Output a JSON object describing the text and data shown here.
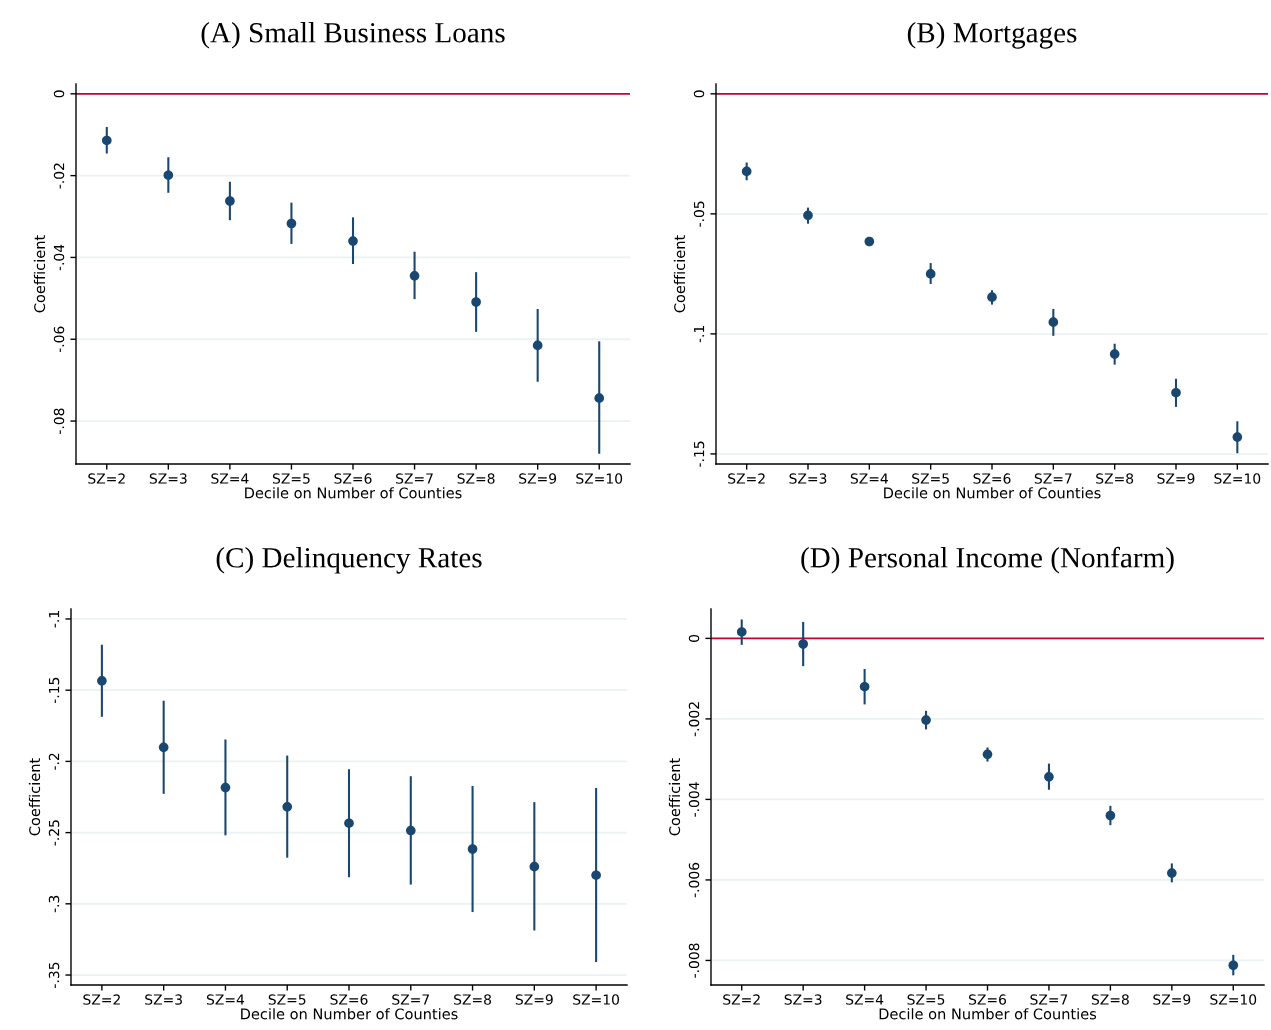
{
  "chart_data": [
    {
      "type": "scatter",
      "title": "(A) Small Business Loans",
      "xlabel": "Decile on Number of Counties",
      "ylabel": "Coefficient",
      "categories": [
        "SZ=2",
        "SZ=3",
        "SZ=4",
        "SZ=5",
        "SZ=6",
        "SZ=7",
        "SZ=8",
        "SZ=9",
        "SZ=10"
      ],
      "series": [
        {
          "color": "#1a476f",
          "values": [
            -0.0114,
            -0.0199,
            -0.0262,
            -0.0317,
            -0.036,
            -0.0445,
            -0.0509,
            -0.0615,
            -0.0744
          ],
          "errors": [
            [
              -0.0146,
              -0.0081
            ],
            [
              -0.0242,
              -0.0155
            ],
            [
              -0.0309,
              -0.0215
            ],
            [
              -0.0367,
              -0.0266
            ],
            [
              -0.0416,
              -0.0302
            ],
            [
              -0.0502,
              -0.0386
            ],
            [
              -0.0582,
              -0.0436
            ],
            [
              -0.0704,
              -0.0526
            ],
            [
              -0.088,
              -0.0605
            ]
          ]
        }
      ],
      "ylim": [
        -0.0905,
        0.0024
      ],
      "yticks": [
        0,
        {
          "value": -0.02,
          "label": "-.02"
        },
        {
          "value": -0.04,
          "label": "-.04"
        },
        {
          "value": -0.06,
          "label": "-.06"
        },
        {
          "value": -0.08,
          "label": "-.08"
        }
      ],
      "grid": "y",
      "marker": "circle",
      "ref_lines": [
        {
          "axis": "y",
          "value": 0,
          "color": "#c10534"
        }
      ]
    },
    {
      "type": "scatter",
      "title": "(B) Mortgages",
      "xlabel": "Decile on Number of Counties",
      "ylabel": "Coefficient",
      "categories": [
        "SZ=2",
        "SZ=3",
        "SZ=4",
        "SZ=5",
        "SZ=6",
        "SZ=7",
        "SZ=8",
        "SZ=9",
        "SZ=10"
      ],
      "series": [
        {
          "color": "#1a476f",
          "values": [
            -0.0323,
            -0.0506,
            -0.0615,
            -0.075,
            -0.0847,
            -0.0951,
            -0.1084,
            -0.1245,
            -0.143
          ],
          "errors": [
            [
              -0.036,
              -0.0286
            ],
            [
              -0.0541,
              -0.0474
            ],
            [
              -0.0625,
              -0.0605
            ],
            [
              -0.0792,
              -0.0705
            ],
            [
              -0.0878,
              -0.0818
            ],
            [
              -0.1008,
              -0.0896
            ],
            [
              -0.1128,
              -0.1041
            ],
            [
              -0.1304,
              -0.1187
            ],
            [
              -0.1497,
              -0.1364
            ]
          ]
        }
      ],
      "ylim": [
        -0.1542,
        0.0041
      ],
      "yticks": [
        0,
        {
          "value": -0.05,
          "label": "-.05"
        },
        {
          "value": -0.1,
          "label": "-.1"
        },
        {
          "value": -0.15,
          "label": "-.15"
        }
      ],
      "grid": "y",
      "marker": "circle",
      "ref_lines": [
        {
          "axis": "y",
          "value": 0,
          "color": "#c10534"
        }
      ]
    },
    {
      "type": "scatter",
      "title": "(C) Delinquency Rates",
      "xlabel": "Decile on Number of Counties",
      "ylabel": "Coefficient",
      "categories": [
        "SZ=2",
        "SZ=3",
        "SZ=4",
        "SZ=5",
        "SZ=6",
        "SZ=7",
        "SZ=8",
        "SZ=9",
        "SZ=10"
      ],
      "series": [
        {
          "color": "#1a476f",
          "values": [
            -0.1434,
            -0.1901,
            -0.2184,
            -0.2319,
            -0.2434,
            -0.2486,
            -0.2615,
            -0.2739,
            -0.2799
          ],
          "errors": [
            [
              -0.1687,
              -0.1181
            ],
            [
              -0.2228,
              -0.1574
            ],
            [
              -0.2519,
              -0.1846
            ],
            [
              -0.2676,
              -0.1959
            ],
            [
              -0.2813,
              -0.2055
            ],
            [
              -0.2865,
              -0.2104
            ],
            [
              -0.3058,
              -0.2173
            ],
            [
              -0.3187,
              -0.2286
            ],
            [
              -0.3409,
              -0.2187
            ]
          ]
        }
      ],
      "ylim": [
        -0.357,
        -0.093
      ],
      "yticks": [
        {
          "value": -0.1,
          "label": "-.1"
        },
        {
          "value": -0.15,
          "label": "-.15"
        },
        {
          "value": -0.2,
          "label": "-.2"
        },
        {
          "value": -0.25,
          "label": "-.25"
        },
        {
          "value": -0.3,
          "label": "-.3"
        },
        {
          "value": -0.35,
          "label": "-.35"
        }
      ],
      "grid": "y",
      "marker": "circle"
    },
    {
      "type": "scatter",
      "title": "(D) Personal Income (Nonfarm)",
      "xlabel": "Decile on Number of Counties",
      "ylabel": "Coefficient",
      "categories": [
        "SZ=2",
        "SZ=3",
        "SZ=4",
        "SZ=5",
        "SZ=6",
        "SZ=7",
        "SZ=8",
        "SZ=9",
        "SZ=10"
      ],
      "series": [
        {
          "color": "#1a476f",
          "values": [
            0.00016,
            -0.00014,
            -0.0012,
            -0.00203,
            -0.00288,
            -0.00344,
            -0.0044,
            -0.00583,
            -0.00812
          ],
          "errors": [
            [
              -0.00016,
              0.00047
            ],
            [
              -0.00069,
              0.00041
            ],
            [
              -0.00164,
              -0.00076
            ],
            [
              -0.00226,
              -0.0018
            ],
            [
              -0.00306,
              -0.00271
            ],
            [
              -0.00376,
              -0.00311
            ],
            [
              -0.00464,
              -0.00416
            ],
            [
              -0.00606,
              -0.00559
            ],
            [
              -0.00837,
              -0.00786
            ]
          ]
        }
      ],
      "ylim": [
        -0.00861,
        0.00073
      ],
      "yticks": [
        0,
        {
          "value": -0.002,
          "label": "-.002"
        },
        {
          "value": -0.004,
          "label": "-.004"
        },
        {
          "value": -0.006,
          "label": "-.006"
        },
        {
          "value": -0.008,
          "label": "-.008"
        }
      ],
      "grid": "y",
      "marker": "circle",
      "ref_lines": [
        {
          "axis": "y",
          "value": 0,
          "color": "#c10534"
        }
      ]
    }
  ]
}
